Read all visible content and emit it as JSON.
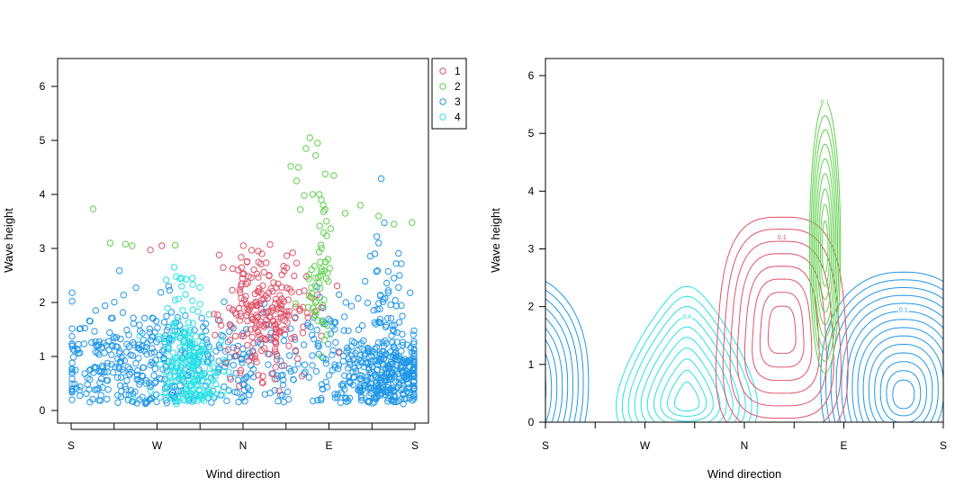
{
  "colors": {
    "1": "#df536b",
    "2": "#61d04f",
    "3": "#2297e6",
    "4": "#28e2e5"
  },
  "chart_data": [
    {
      "type": "scatter",
      "title": "",
      "xlabel": "Wind direction",
      "ylabel": "Wave height",
      "xlim": [
        0,
        360
      ],
      "ylim": [
        -0.25,
        6.5
      ],
      "x_ticks": [
        {
          "value": 0,
          "label": "S"
        },
        {
          "value": 45,
          "label": ""
        },
        {
          "value": 90,
          "label": "W"
        },
        {
          "value": 135,
          "label": ""
        },
        {
          "value": 180,
          "label": "N"
        },
        {
          "value": 225,
          "label": ""
        },
        {
          "value": 270,
          "label": "E"
        },
        {
          "value": 315,
          "label": ""
        },
        {
          "value": 360,
          "label": "S"
        }
      ],
      "y_ticks": [
        0,
        1,
        2,
        3,
        4,
        5,
        6
      ],
      "legend": {
        "position": "top-right",
        "entries": [
          "1",
          "2",
          "3",
          "4"
        ]
      },
      "series": [
        {
          "name": "1",
          "clusters": [
            {
              "cx": 207,
              "cy": 1.7,
              "sx": 22,
              "sy": 0.5,
              "n": 190
            },
            {
              "cx": 185,
              "cy": 2.4,
              "sx": 12,
              "sy": 0.35,
              "n": 40
            }
          ],
          "extra_points": [
            [
              83,
              2.97
            ],
            [
              95,
              3.05
            ],
            [
              155,
              2.88
            ],
            [
              196,
              2.95
            ],
            [
              232,
              2.92
            ],
            [
              262,
              1.38
            ],
            [
              167,
              0.58
            ],
            [
              176,
              0.45
            ]
          ]
        },
        {
          "name": "2",
          "clusters": [
            {
              "cx": 257,
              "cy": 2.1,
              "sx": 7,
              "sy": 0.35,
              "n": 30
            },
            {
              "cx": 265,
              "cy": 2.9,
              "sx": 4,
              "sy": 0.4,
              "n": 20
            }
          ],
          "extra_points": [
            [
              23,
              3.73
            ],
            [
              41,
              3.1
            ],
            [
              57,
              3.08
            ],
            [
              64,
              3.05
            ],
            [
              109,
              3.06
            ],
            [
              230,
              4.52
            ],
            [
              236,
              4.25
            ],
            [
              238,
              4.5
            ],
            [
              240,
              3.72
            ],
            [
              244,
              3.98
            ],
            [
              246,
              4.85
            ],
            [
              250,
              5.05
            ],
            [
              253,
              4.0
            ],
            [
              256,
              4.72
            ],
            [
              258,
              4.95
            ],
            [
              260,
              4.0
            ],
            [
              262,
              3.9
            ],
            [
              264,
              3.8
            ],
            [
              266,
              4.38
            ],
            [
              275,
              4.35
            ],
            [
              287,
              3.65
            ],
            [
              303,
              3.8
            ],
            [
              322,
              3.6
            ],
            [
              338,
              3.45
            ],
            [
              357,
              3.48
            ],
            [
              268,
              1.4
            ],
            [
              262,
              1.0
            ]
          ]
        },
        {
          "name": "3",
          "clusters": [
            {
              "cx": 330,
              "cy": 0.7,
              "sx": 22,
              "sy": 0.38,
              "n": 330
            },
            {
              "cx": 330,
              "cy": 2.0,
              "sx": 14,
              "sy": 0.7,
              "n": 45
            },
            {
              "cx": 75,
              "cy": 0.9,
              "sx": 42,
              "sy": 0.55,
              "n": 260
            },
            {
              "cx": 20,
              "cy": 0.9,
              "sx": 18,
              "sy": 0.6,
              "n": 60
            },
            {
              "cx": 185,
              "cy": 0.8,
              "sx": 45,
              "sy": 0.5,
              "n": 130
            },
            {
              "cx": 280,
              "cy": 1.0,
              "sx": 25,
              "sy": 0.6,
              "n": 70
            }
          ],
          "extra_points": [
            [
              320,
              3.22
            ],
            [
              322,
              3.1
            ],
            [
              318,
              2.9
            ],
            [
              355,
              2.18
            ],
            [
              338,
              2.45
            ]
          ]
        },
        {
          "name": "4",
          "clusters": [
            {
              "cx": 125,
              "cy": 0.6,
              "sx": 16,
              "sy": 0.45,
              "n": 170
            },
            {
              "cx": 118,
              "cy": 1.5,
              "sx": 10,
              "sy": 0.55,
              "n": 45
            }
          ],
          "extra_points": [
            [
              108,
              2.65
            ],
            [
              110,
              2.48
            ],
            [
              116,
              2.45
            ],
            [
              127,
              2.45
            ],
            [
              135,
              1.97
            ]
          ]
        }
      ]
    },
    {
      "type": "contour",
      "title": "",
      "xlabel": "Wind direction",
      "ylabel": "Wave height",
      "xlim": [
        0,
        360
      ],
      "ylim": [
        0,
        6.3
      ],
      "x_ticks": [
        {
          "value": 0,
          "label": "S"
        },
        {
          "value": 45,
          "label": ""
        },
        {
          "value": 90,
          "label": "W"
        },
        {
          "value": 135,
          "label": ""
        },
        {
          "value": 180,
          "label": "N"
        },
        {
          "value": 225,
          "label": ""
        },
        {
          "value": 270,
          "label": "E"
        },
        {
          "value": 315,
          "label": ""
        },
        {
          "value": 360,
          "label": "S"
        }
      ],
      "y_ticks": [
        0,
        1,
        2,
        3,
        4,
        5,
        6
      ],
      "components": [
        {
          "name": "1",
          "cx": 214,
          "cy": 1.6,
          "rx_outer": 58,
          "ry_outer": 1.95,
          "levels": [
            "0.05",
            "0.1",
            "0.15",
            "0.2",
            "0.25",
            "0.3",
            "0.35",
            "0.4"
          ],
          "label_level": "0.1"
        },
        {
          "name": "2",
          "cx": 253,
          "cy": 3.0,
          "rx_outer": 14,
          "ry_outer": 2.35,
          "levels": [
            "0.1",
            "0.2",
            "0.3",
            "0.4",
            "0.5",
            "0.6",
            "0.7",
            "0.8",
            "0.9"
          ],
          "label_level": "0.1"
        },
        {
          "name": "3",
          "cx": 324,
          "cy": 0.45,
          "rx_outer": 75,
          "ry_outer": 1.9,
          "levels": [
            "0.02",
            "0.04",
            "0.06",
            "0.08",
            "0.1",
            "0.12",
            "0.14",
            "0.16",
            "0.18",
            "0.2",
            "0.22",
            "0.24",
            "0.26",
            "0.28"
          ],
          "label_level": "0.1"
        },
        {
          "name": "4",
          "cx": 128,
          "cy": 0.35,
          "rx_outer": 56,
          "ry_outer": 1.45,
          "levels": [
            "0.1",
            "0.2",
            "0.3",
            "0.4",
            "0.5",
            "0.6",
            "0.7",
            "0.8",
            "0.9",
            "1"
          ],
          "label_level": "0.4"
        }
      ],
      "contour_labels": [
        "0.02",
        "0.04",
        "0.05",
        "0.08",
        "0.1",
        "0.12",
        "0.14",
        "0.16",
        "0.18",
        "0.2",
        "0.22",
        "0.24"
      ]
    }
  ]
}
